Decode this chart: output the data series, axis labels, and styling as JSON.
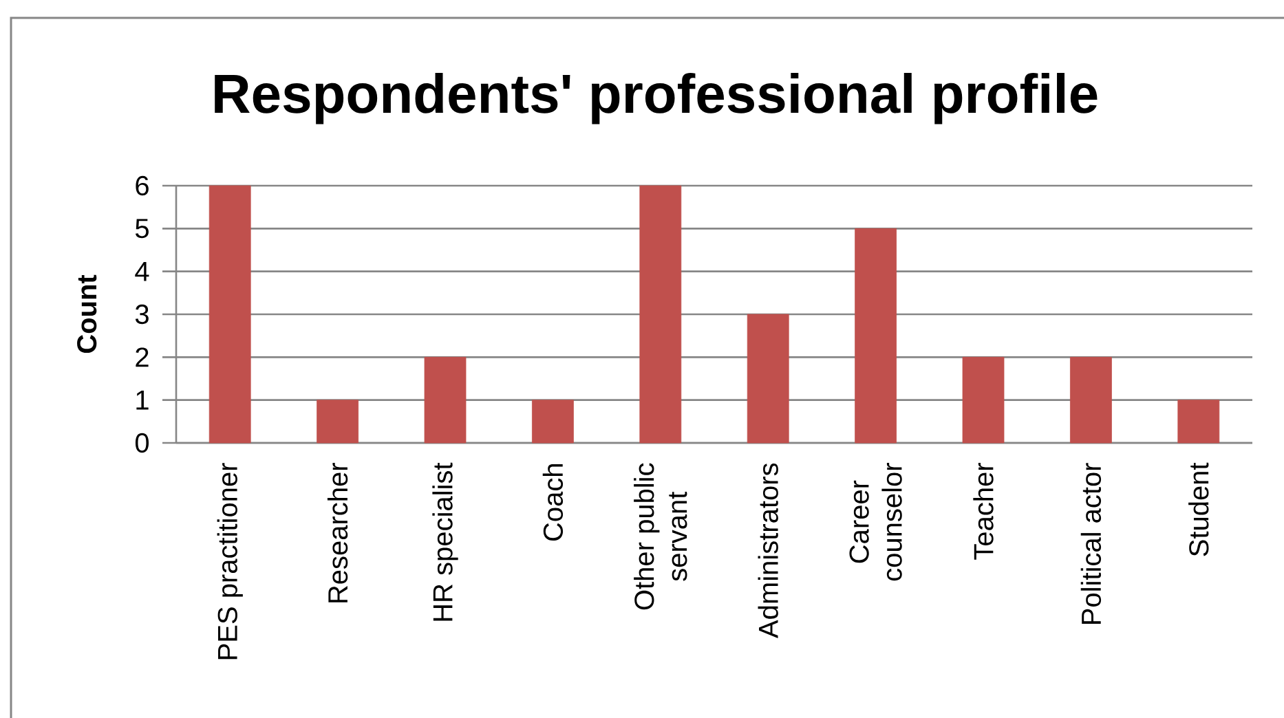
{
  "chart_data": {
    "type": "bar",
    "title": "Respondents' professional profile",
    "ylabel": "Count",
    "categories": [
      "PES practitioner",
      "Researcher",
      "HR specialist",
      "Coach",
      "Other public servant",
      "Administrators",
      "Career counselor",
      "Teacher",
      "Political actor",
      "Student"
    ],
    "values": [
      6,
      1,
      2,
      1,
      6,
      3,
      5,
      2,
      2,
      1
    ],
    "color": "#c0504d",
    "ylim": [
      0,
      6
    ],
    "yticks": [
      0,
      1,
      2,
      3,
      4,
      5,
      6
    ],
    "grid": "y"
  }
}
